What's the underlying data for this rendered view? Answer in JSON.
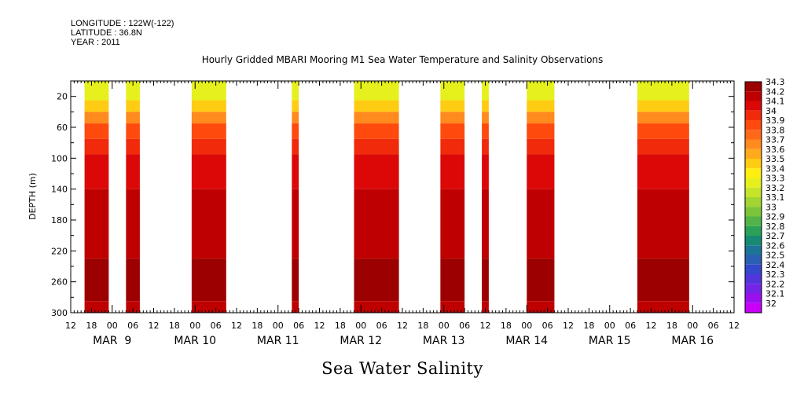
{
  "header": {
    "longitude": "LONGITUDE : 122W(-122)",
    "latitude": "LATITUDE : 36.8N",
    "year": "YEAR : 2011"
  },
  "chart_data": {
    "type": "heatmap",
    "title": "Hourly Gridded MBARI Mooring M1 Sea Water Temperature and Salinity Observations",
    "bottom_title": "Sea Water Salinity",
    "ylabel": "DEPTH (m)",
    "ylim": [
      0,
      300
    ],
    "y_ticks": [
      20,
      60,
      100,
      140,
      180,
      220,
      260,
      300
    ],
    "x_hour_ticks": [
      "12",
      "18",
      "00",
      "06",
      "12",
      "18",
      "00",
      "06",
      "12",
      "18",
      "00",
      "06",
      "12",
      "18",
      "00",
      "06",
      "12",
      "18",
      "00",
      "06",
      "12",
      "18",
      "00",
      "06",
      "12",
      "18",
      "00",
      "06",
      "12",
      "18",
      "00",
      "06",
      "12"
    ],
    "x_days": [
      "MAR  9",
      "MAR 10",
      "MAR 11",
      "MAR 12",
      "MAR 13",
      "MAR 14",
      "MAR 15",
      "MAR 16"
    ],
    "colorbar": {
      "levels": [
        "34.3",
        "34.2",
        "34.1",
        "34",
        "33.9",
        "33.8",
        "33.7",
        "33.6",
        "33.5",
        "33.4",
        "33.3",
        "33.2",
        "33.1",
        "33",
        "32.9",
        "32.8",
        "32.7",
        "32.6",
        "32.5",
        "32.4",
        "32.3",
        "32.2",
        "32.1",
        "32"
      ],
      "colors": [
        "#9c0000",
        "#be0000",
        "#dc0808",
        "#f02a0a",
        "#ff4a0e",
        "#ff6818",
        "#ff8a1e",
        "#ffaa1c",
        "#ffcc14",
        "#ffee10",
        "#e6f01c",
        "#c6e42a",
        "#a2d432",
        "#7cc43a",
        "#52b448",
        "#2aa058",
        "#168a74",
        "#1e7496",
        "#2a60b4",
        "#3448cc",
        "#5236dc",
        "#7424e6",
        "#9a10ee",
        "#c800f8"
      ]
    },
    "profile_bands": [
      {
        "dmin": 0,
        "dmax": 25,
        "value": 33.3
      },
      {
        "dmin": 25,
        "dmax": 40,
        "value": 33.5
      },
      {
        "dmin": 40,
        "dmax": 55,
        "value": 33.7
      },
      {
        "dmin": 55,
        "dmax": 75,
        "value": 33.9
      },
      {
        "dmin": 75,
        "dmax": 95,
        "value": 34.0
      },
      {
        "dmin": 95,
        "dmax": 140,
        "value": 34.1
      },
      {
        "dmin": 140,
        "dmax": 230,
        "value": 34.2
      },
      {
        "dmin": 230,
        "dmax": 285,
        "value": 34.3
      },
      {
        "dmin": 285,
        "dmax": 300,
        "value": 34.2
      }
    ],
    "data_segments": [
      {
        "start": "MAR 8 16:00",
        "end": "MAR 8 23:00"
      },
      {
        "start": "MAR 9 04:00",
        "end": "MAR 9 08:00"
      },
      {
        "start": "MAR 9 23:00",
        "end": "MAR 10 09:00"
      },
      {
        "start": "MAR 11 04:00",
        "end": "MAR 11 06:00"
      },
      {
        "start": "MAR 11 22:00",
        "end": "MAR 12 11:00"
      },
      {
        "start": "MAR 12 23:00",
        "end": "MAR 13 06:00"
      },
      {
        "start": "MAR 13 11:00",
        "end": "MAR 13 13:00"
      },
      {
        "start": "MAR 14 00:00",
        "end": "MAR 14 08:00"
      },
      {
        "start": "MAR 15 08:00",
        "end": "MAR 15 23:00"
      }
    ]
  }
}
